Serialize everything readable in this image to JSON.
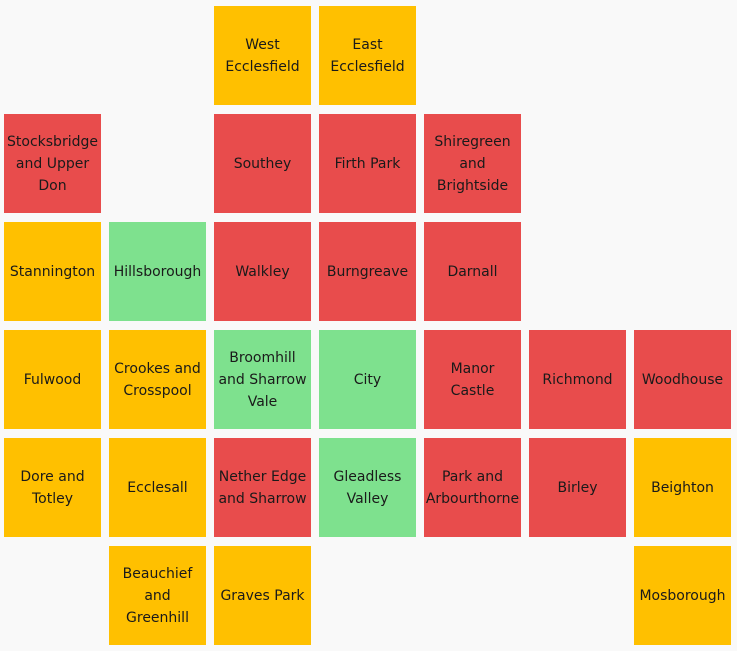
{
  "colors": {
    "red": "#e84c4c",
    "amber": "#ffc000",
    "green": "#7ee18e"
  },
  "chart_data": {
    "type": "table",
    "title": "",
    "description_of_encoding": "hex-style tile grid; row and column are grid cell indices, category maps to tile colour",
    "tiles": [
      {
        "name": "West\nEcclesfield",
        "row": 0,
        "col": 2,
        "category": "amber"
      },
      {
        "name": "East\nEcclesfield",
        "row": 0,
        "col": 3,
        "category": "amber"
      },
      {
        "name": "Stocksbridge\nand Upper\nDon",
        "row": 1,
        "col": 0,
        "category": "red"
      },
      {
        "name": "Southey",
        "row": 1,
        "col": 2,
        "category": "red"
      },
      {
        "name": "Firth Park",
        "row": 1,
        "col": 3,
        "category": "red"
      },
      {
        "name": "Shiregreen\nand\nBrightside",
        "row": 1,
        "col": 4,
        "category": "red"
      },
      {
        "name": "Stannington",
        "row": 2,
        "col": 0,
        "category": "amber"
      },
      {
        "name": "Hillsborough",
        "row": 2,
        "col": 1,
        "category": "green"
      },
      {
        "name": "Walkley",
        "row": 2,
        "col": 2,
        "category": "red"
      },
      {
        "name": "Burngreave",
        "row": 2,
        "col": 3,
        "category": "red"
      },
      {
        "name": "Darnall",
        "row": 2,
        "col": 4,
        "category": "red"
      },
      {
        "name": "Fulwood",
        "row": 3,
        "col": 0,
        "category": "amber"
      },
      {
        "name": "Crookes and\nCrosspool",
        "row": 3,
        "col": 1,
        "category": "amber"
      },
      {
        "name": "Broomhill\nand Sharrow\nVale",
        "row": 3,
        "col": 2,
        "category": "green"
      },
      {
        "name": "City",
        "row": 3,
        "col": 3,
        "category": "green"
      },
      {
        "name": "Manor Castle",
        "row": 3,
        "col": 4,
        "category": "red"
      },
      {
        "name": "Richmond",
        "row": 3,
        "col": 5,
        "category": "red"
      },
      {
        "name": "Woodhouse",
        "row": 3,
        "col": 6,
        "category": "red"
      },
      {
        "name": "Dore and\nTotley",
        "row": 4,
        "col": 0,
        "category": "amber"
      },
      {
        "name": "Ecclesall",
        "row": 4,
        "col": 1,
        "category": "amber"
      },
      {
        "name": "Nether Edge\nand Sharrow",
        "row": 4,
        "col": 2,
        "category": "red"
      },
      {
        "name": "Gleadless\nValley",
        "row": 4,
        "col": 3,
        "category": "green"
      },
      {
        "name": "Park and\nArbourthorne",
        "row": 4,
        "col": 4,
        "category": "red"
      },
      {
        "name": "Birley",
        "row": 4,
        "col": 5,
        "category": "red"
      },
      {
        "name": "Beighton",
        "row": 4,
        "col": 6,
        "category": "amber"
      },
      {
        "name": "Beauchief\nand Greenhill",
        "row": 5,
        "col": 1,
        "category": "amber"
      },
      {
        "name": "Graves Park",
        "row": 5,
        "col": 2,
        "category": "amber"
      },
      {
        "name": "Mosborough",
        "row": 5,
        "col": 6,
        "category": "amber"
      }
    ]
  }
}
